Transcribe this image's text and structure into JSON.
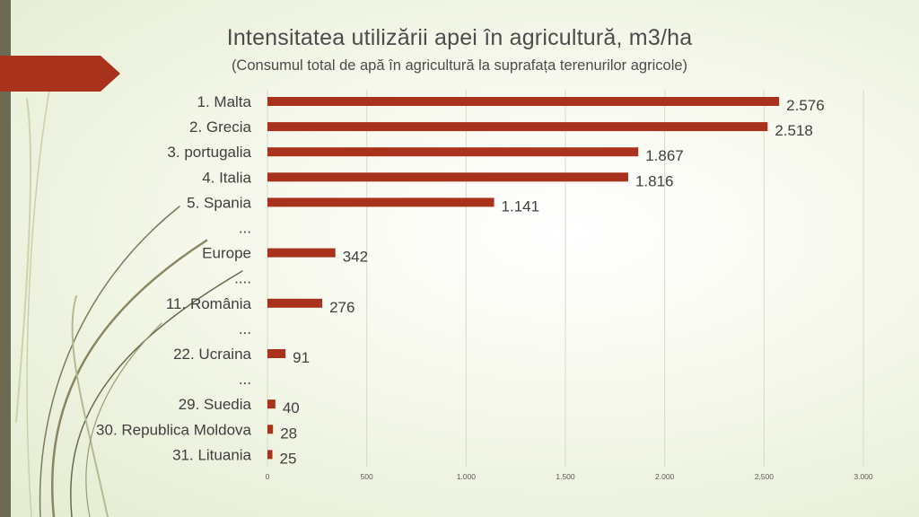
{
  "chart_data": {
    "type": "bar",
    "orientation": "horizontal",
    "title": "Intensitatea utilizării apei în agricultură, m3/ha",
    "subtitle": "(Consumul total de apă în agricultură la suprafața terenurilor agricole)",
    "categories": [
      "1. Malta",
      "2. Grecia",
      "3. portugalia",
      "4. Italia",
      "5. Spania",
      "...",
      "Europe",
      "....",
      "11. România",
      "...",
      "22. Ucraina",
      "...",
      "29. Suedia",
      "30. Republica Moldova",
      "31. Lituania"
    ],
    "values": [
      2576,
      2518,
      1867,
      1816,
      1141,
      null,
      342,
      null,
      276,
      null,
      91,
      null,
      40,
      28,
      25
    ],
    "value_labels": [
      "2.576",
      "2.518",
      "1.867",
      "1.816",
      "1.141",
      "",
      "342",
      "",
      "276",
      "",
      "91",
      "",
      "40",
      "28",
      "25"
    ],
    "xlim": [
      0,
      3000
    ],
    "x_ticks": [
      0,
      500,
      1000,
      1500,
      2000,
      2500,
      3000
    ],
    "x_tick_labels": [
      "0",
      "500",
      "1.000",
      "1.500",
      "2.000",
      "2.500",
      "3.000"
    ],
    "grid": true,
    "bar_color": "#a8321b"
  },
  "theme": {
    "accent_color": "#a8321b",
    "side_bar_color": "#6d6a52",
    "text_color": "#3f3f3f"
  }
}
